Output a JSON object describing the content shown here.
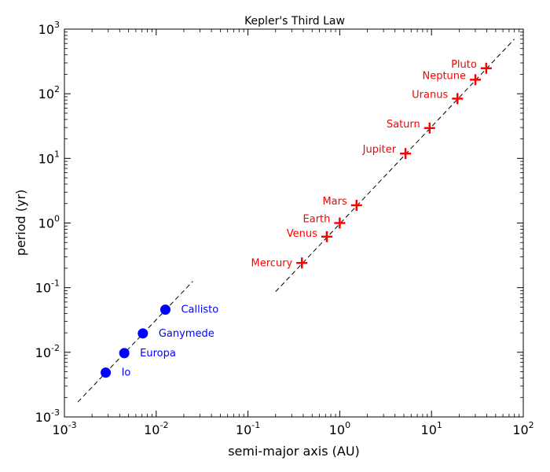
{
  "chart_data": {
    "type": "scatter",
    "title": "Kepler's Third Law",
    "xlabel": "semi-major axis (AU)",
    "ylabel": "period (yr)",
    "xscale": "log",
    "yscale": "log",
    "xlim": [
      0.001,
      100
    ],
    "ylim": [
      0.001,
      1000
    ],
    "grid": false,
    "legend": "none",
    "x_ticks": [
      {
        "base": "10",
        "exp": "-3",
        "value": 0.001
      },
      {
        "base": "10",
        "exp": "-2",
        "value": 0.01
      },
      {
        "base": "10",
        "exp": "-1",
        "value": 0.1
      },
      {
        "base": "10",
        "exp": "0",
        "value": 1
      },
      {
        "base": "10",
        "exp": "1",
        "value": 10
      },
      {
        "base": "10",
        "exp": "2",
        "value": 100
      }
    ],
    "y_ticks": [
      {
        "base": "10",
        "exp": "-3",
        "value": 0.001
      },
      {
        "base": "10",
        "exp": "-2",
        "value": 0.01
      },
      {
        "base": "10",
        "exp": "-1",
        "value": 0.1
      },
      {
        "base": "10",
        "exp": "0",
        "value": 1
      },
      {
        "base": "10",
        "exp": "1",
        "value": 10
      },
      {
        "base": "10",
        "exp": "2",
        "value": 100
      },
      {
        "base": "10",
        "exp": "3",
        "value": 1000
      }
    ],
    "series": [
      {
        "marker": "plus",
        "color": "#ff0000",
        "points": [
          {
            "label": "Mercury",
            "x": 0.387,
            "y": 0.241
          },
          {
            "label": "Venus",
            "x": 0.723,
            "y": 0.615
          },
          {
            "label": "Earth",
            "x": 1.0,
            "y": 1.0
          },
          {
            "label": "Mars",
            "x": 1.524,
            "y": 1.881
          },
          {
            "label": "Jupiter",
            "x": 5.203,
            "y": 11.86
          },
          {
            "label": "Saturn",
            "x": 9.537,
            "y": 29.46
          },
          {
            "label": "Uranus",
            "x": 19.19,
            "y": 84.01
          },
          {
            "label": "Neptune",
            "x": 30.07,
            "y": 164.8
          },
          {
            "label": "Pluto",
            "x": 39.48,
            "y": 248.0
          }
        ]
      },
      {
        "marker": "circle",
        "color": "#0000ff",
        "points": [
          {
            "label": "Io",
            "x": 0.00282,
            "y": 0.00485
          },
          {
            "label": "Europa",
            "x": 0.00449,
            "y": 0.00972
          },
          {
            "label": "Ganymede",
            "x": 0.00716,
            "y": 0.0196
          },
          {
            "label": "Callisto",
            "x": 0.01259,
            "y": 0.0457
          }
        ]
      }
    ],
    "fit_lines": [
      {
        "style": "dashed",
        "color": "#000000",
        "x": [
          0.2,
          80
        ],
        "y": [
          0.0867,
          701
        ]
      },
      {
        "style": "dashed",
        "color": "#000000",
        "x": [
          0.0014,
          0.025
        ],
        "y": [
          0.0017,
          0.125
        ]
      }
    ]
  }
}
